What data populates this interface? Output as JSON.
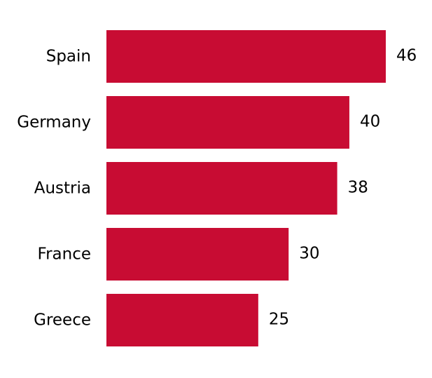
{
  "chart_data": {
    "type": "bar",
    "orientation": "horizontal",
    "categories": [
      "Spain",
      "Germany",
      "Austria",
      "France",
      "Greece"
    ],
    "values": [
      46,
      40,
      38,
      30,
      25
    ],
    "title": "",
    "xlabel": "",
    "ylabel": "",
    "xlim": [
      0,
      46
    ],
    "grid": false,
    "legend": "none",
    "colors": {
      "bar": "#c80c33"
    }
  }
}
